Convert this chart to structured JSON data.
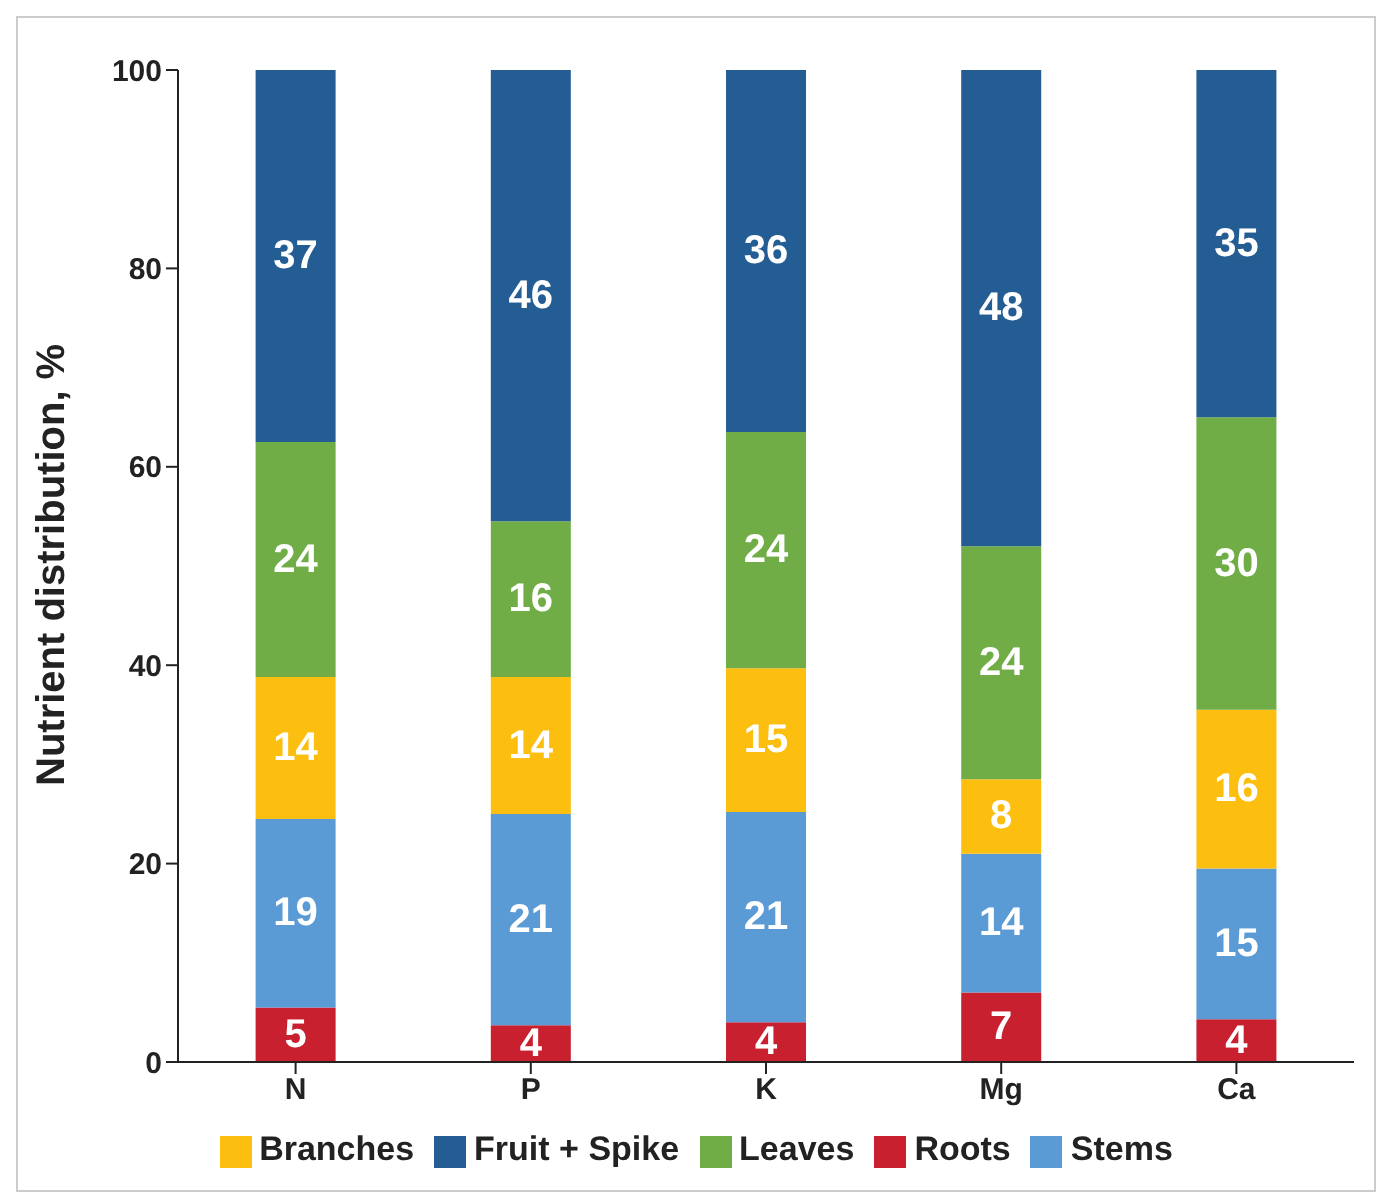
{
  "chart_data": {
    "type": "bar",
    "stacked": true,
    "ylabel": "Nutrient distribution, %",
    "categories": [
      "N",
      "P",
      "K",
      "Mg",
      "Ca"
    ],
    "ylim": [
      0,
      100
    ],
    "yticks": [
      0,
      20,
      40,
      60,
      80,
      100
    ],
    "grid": false,
    "legend": "bottom",
    "series": [
      {
        "name": "Roots",
        "color": "#c8202f",
        "values": [
          5.5,
          3.7,
          4,
          7,
          4.3
        ],
        "value_labels": [
          "5",
          "4",
          "4",
          "7",
          "4"
        ]
      },
      {
        "name": "Stems",
        "color": "#5b9bd5",
        "values": [
          19,
          21.3,
          21.2,
          14,
          15.2
        ],
        "value_labels": [
          "19",
          "21",
          "21",
          "14",
          "15"
        ]
      },
      {
        "name": "Branches",
        "color": "#fcbf10",
        "values": [
          14.3,
          13.8,
          14.5,
          7.5,
          16
        ],
        "value_labels": [
          "14",
          "14",
          "15",
          "8",
          "16"
        ]
      },
      {
        "name": "Leaves",
        "color": "#70ad47",
        "values": [
          23.7,
          15.7,
          23.8,
          23.5,
          29.5
        ],
        "value_labels": [
          "24",
          "16",
          "24",
          "24",
          "30"
        ]
      },
      {
        "name": "Fruit + Spike",
        "color": "#245c94",
        "values": [
          37.5,
          45.5,
          36.5,
          48,
          35
        ],
        "value_labels": [
          "37",
          "46",
          "36",
          "48",
          "35"
        ]
      }
    ]
  }
}
